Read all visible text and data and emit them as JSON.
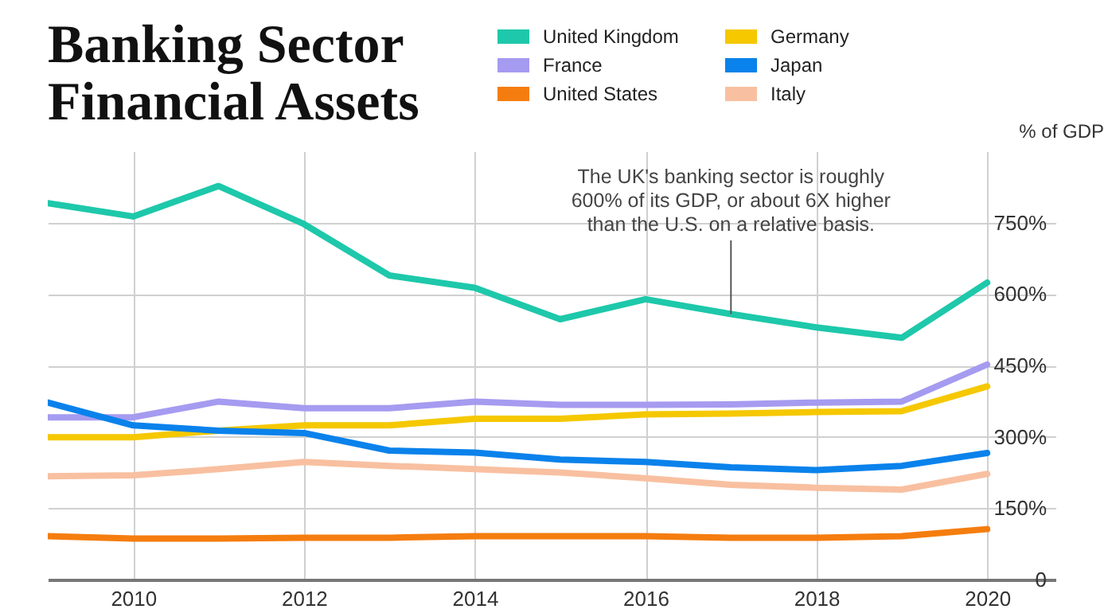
{
  "chart_data": {
    "type": "line",
    "title": "Banking Sector Financial Assets",
    "ylabel": "% of GDP",
    "x": [
      2009,
      2010,
      2011,
      2012,
      2013,
      2014,
      2015,
      2016,
      2017,
      2018,
      2019,
      2020
    ],
    "series": [
      {
        "name": "United Kingdom",
        "color": "#1ec8aa",
        "values": [
          791,
          763,
          827,
          747,
          639,
          613,
          547,
          589,
          558,
          530,
          508,
          624
        ]
      },
      {
        "name": "France",
        "color": "#a59bf0",
        "values": [
          341,
          341,
          374,
          360,
          360,
          374,
          367,
          367,
          368,
          372,
          374,
          452
        ]
      },
      {
        "name": "United States",
        "color": "#f57d0f",
        "values": [
          91,
          86,
          86,
          88,
          88,
          91,
          91,
          91,
          88,
          88,
          91,
          106
        ]
      },
      {
        "name": "Germany",
        "color": "#f5c800",
        "values": [
          299,
          299,
          313,
          324,
          324,
          338,
          338,
          347,
          349,
          352,
          354,
          406
        ]
      },
      {
        "name": "Japan",
        "color": "#0a82eb",
        "values": [
          372,
          324,
          313,
          308,
          271,
          267,
          252,
          247,
          236,
          230,
          239,
          266
        ]
      },
      {
        "name": "Italy",
        "color": "#f8c0a0",
        "values": [
          217,
          219,
          232,
          247,
          239,
          232,
          225,
          213,
          199,
          193,
          189,
          222
        ]
      }
    ],
    "xlim": [
      2009,
      2020.8
    ],
    "xticks": [
      2010,
      2012,
      2014,
      2016,
      2018,
      2020
    ],
    "ylim": [
      0,
      900
    ],
    "yticks": [
      {
        "value": 0,
        "label": "0"
      },
      {
        "value": 150,
        "label": "150%"
      },
      {
        "value": 300,
        "label": "300%"
      },
      {
        "value": 450,
        "label": "450%"
      },
      {
        "value": 600,
        "label": "600%"
      },
      {
        "value": 750,
        "label": "750%"
      }
    ],
    "annotations": [
      {
        "text": "The UK's banking sector is roughly 600% of its GDP, or about 6X higher than the U.S. on a relative basis.",
        "x": 2017,
        "y": 558
      }
    ],
    "grid": true,
    "legend": "top right",
    "line_style": "solid",
    "marker": "none"
  }
}
